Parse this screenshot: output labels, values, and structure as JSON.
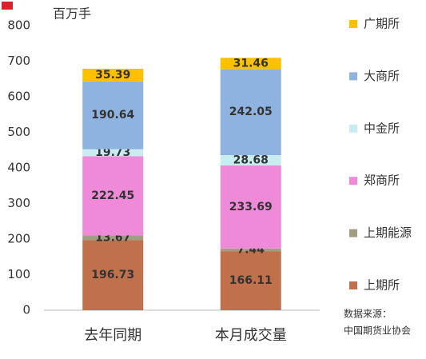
{
  "chart_data": {
    "type": "bar",
    "stacked": true,
    "y_axis_label": "百万手",
    "categories": [
      "去年同期",
      "本月成交量"
    ],
    "series": [
      {
        "name": "上期所",
        "color": "#c0704a",
        "values": [
          196.73,
          166.11
        ]
      },
      {
        "name": "上期能源",
        "color": "#a29c82",
        "values": [
          13.67,
          7.44
        ]
      },
      {
        "name": "郑商所",
        "color": "#ee8ad8",
        "values": [
          222.45,
          233.69
        ]
      },
      {
        "name": "中金所",
        "color": "#c9ecf0",
        "values": [
          19.73,
          28.68
        ]
      },
      {
        "name": "大商所",
        "color": "#8fb3e0",
        "values": [
          190.64,
          242.05
        ]
      },
      {
        "name": "广期所",
        "color": "#ffc000",
        "values": [
          35.39,
          31.46
        ]
      }
    ],
    "ylim": [
      0,
      800
    ],
    "yticks": [
      0,
      100,
      200,
      300,
      400,
      500,
      600,
      700,
      800
    ],
    "source": [
      "数据来源：",
      "中国期货业协会"
    ]
  }
}
